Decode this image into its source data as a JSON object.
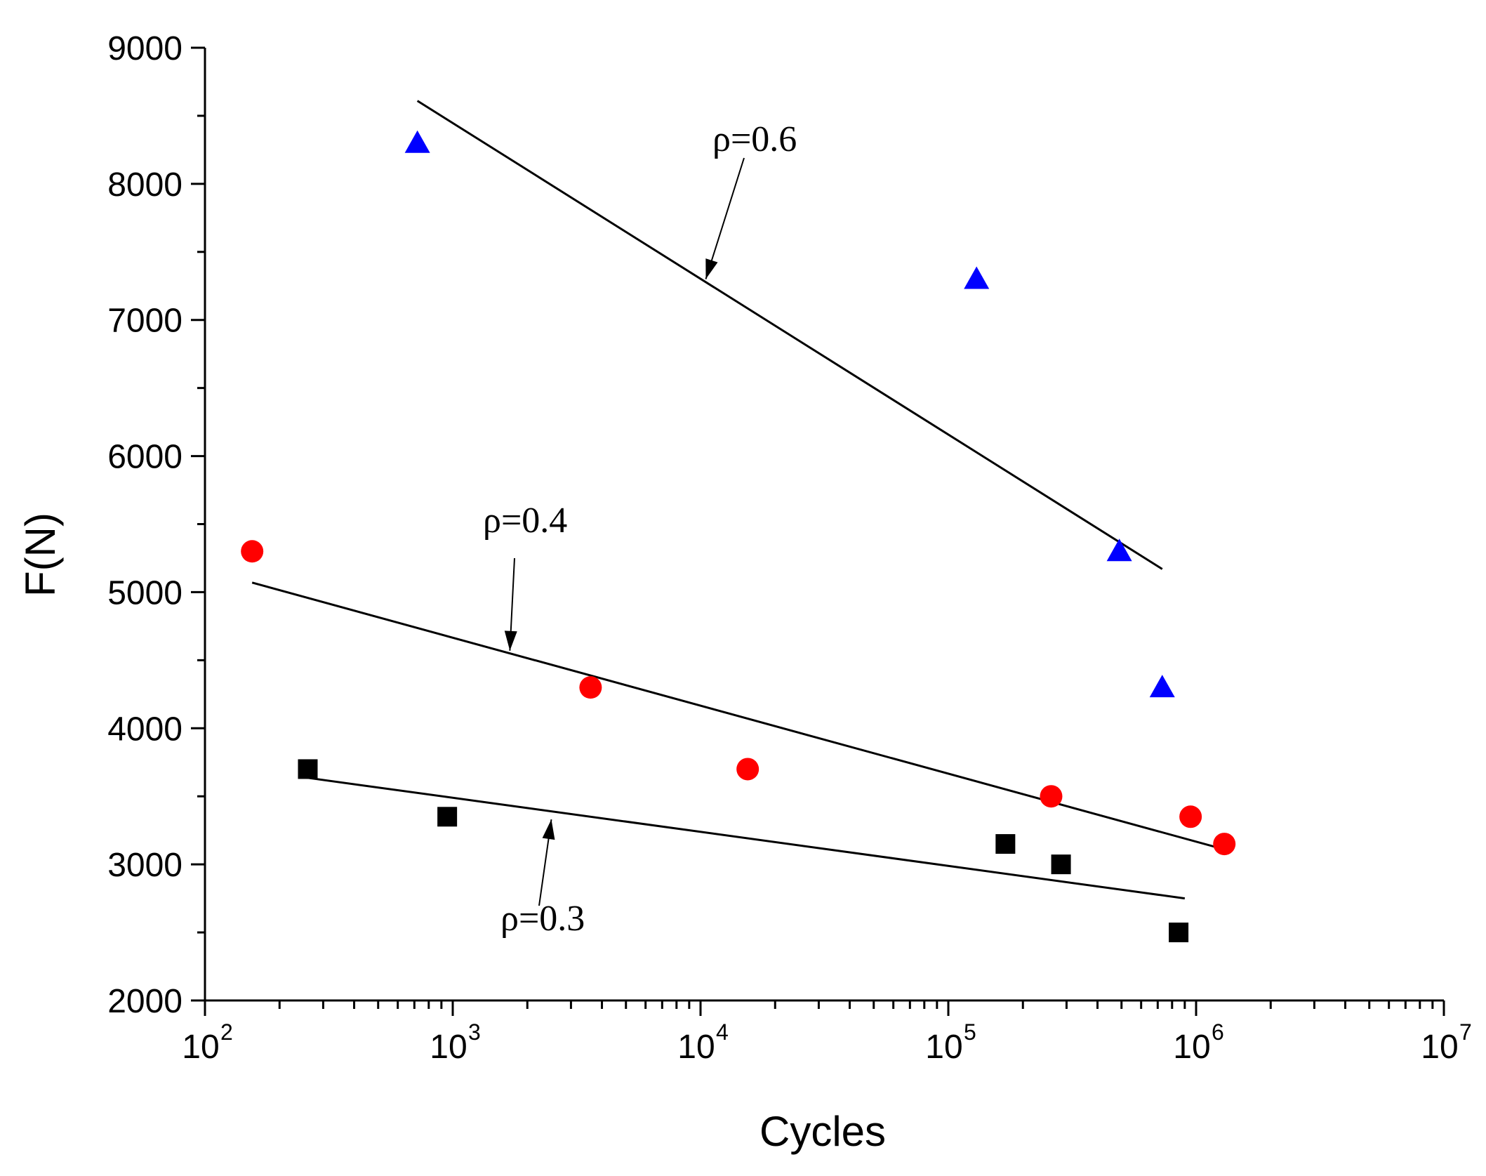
{
  "chart_data": {
    "type": "scatter",
    "title": "",
    "xlabel": "Cycles",
    "ylabel": "F(N)",
    "xscale": "log",
    "xlim_exp": [
      2,
      7
    ],
    "ylim": [
      2000,
      9000
    ],
    "yticks": [
      2000,
      3000,
      4000,
      5000,
      6000,
      7000,
      8000,
      9000
    ],
    "xticks": [
      {
        "base": "10",
        "exp": "2",
        "value": 100
      },
      {
        "base": "10",
        "exp": "3",
        "value": 1000
      },
      {
        "base": "10",
        "exp": "4",
        "value": 10000
      },
      {
        "base": "10",
        "exp": "5",
        "value": 100000
      },
      {
        "base": "10",
        "exp": "6",
        "value": 1000000
      },
      {
        "base": "10",
        "exp": "7",
        "value": 10000000
      }
    ],
    "grid": false,
    "series": [
      {
        "name": "ρ=0.3",
        "marker": "square",
        "color": "#000000",
        "points": [
          [
            260,
            3700
          ],
          [
            950,
            3350
          ],
          [
            170000,
            3150
          ],
          [
            285000,
            3000
          ],
          [
            850000,
            2500
          ]
        ],
        "fit": [
          [
            250,
            3640
          ],
          [
            900000,
            2750
          ]
        ]
      },
      {
        "name": "ρ=0.4",
        "marker": "circle",
        "color": "#ff0000",
        "points": [
          [
            155,
            5300
          ],
          [
            3600,
            4300
          ],
          [
            15500,
            3700
          ],
          [
            260000,
            3500
          ],
          [
            950000,
            3350
          ],
          [
            1300000,
            3150
          ]
        ],
        "fit": [
          [
            155,
            5070
          ],
          [
            1300000,
            3110
          ]
        ]
      },
      {
        "name": "ρ=0.6",
        "marker": "triangle",
        "color": "#0000ff",
        "points": [
          [
            720,
            8300
          ],
          [
            130000,
            7300
          ],
          [
            490000,
            5300
          ],
          [
            730000,
            4300
          ]
        ],
        "fit": [
          [
            720,
            8610
          ],
          [
            730000,
            5170
          ]
        ]
      }
    ],
    "annotations": [
      {
        "text": "ρ=0.6",
        "series": 2,
        "target": [
          10500,
          7300
        ]
      },
      {
        "text": "ρ=0.4",
        "series": 1,
        "target": [
          1700,
          4570
        ]
      },
      {
        "text": "ρ=0.3",
        "series": 0,
        "target": [
          2500,
          3330
        ]
      }
    ]
  }
}
